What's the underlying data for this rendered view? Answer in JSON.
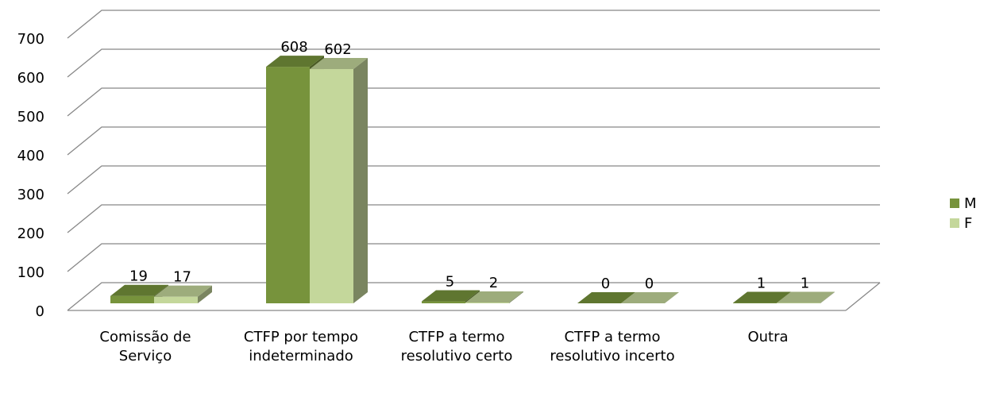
{
  "chart_data": {
    "type": "bar3d",
    "categories": [
      "Comissão de Serviço",
      "CTFP por tempo indeterminado",
      "CTFP a termo resolutivo certo",
      "CTFP a termo resolutivo incerto",
      "Outra"
    ],
    "series": [
      {
        "name": "M",
        "color": "#77933c",
        "values": [
          19,
          608,
          5,
          0,
          1
        ]
      },
      {
        "name": "F",
        "color": "#c4d79b",
        "values": [
          17,
          602,
          2,
          0,
          1
        ]
      }
    ],
    "ylim": [
      0,
      700
    ],
    "yticks": [
      0,
      100,
      200,
      300,
      400,
      500,
      600,
      700
    ],
    "grid": true,
    "legend": "right"
  }
}
